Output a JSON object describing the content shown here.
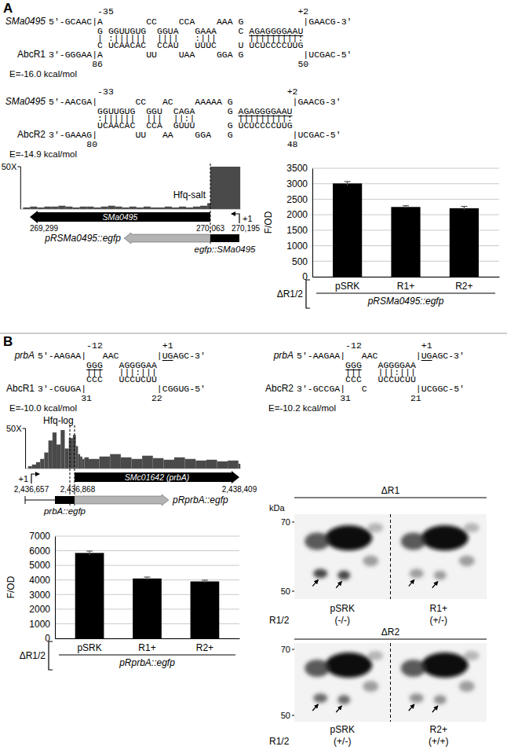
{
  "panels": [
    {
      "label": "A",
      "alignments": [
        {
          "target": "SMa0495",
          "srna": "AbcR1",
          "energy": "E=-16.0 kcal/mol",
          "rows": [
            [
              "         -35                                  +2"
            ],
            [
              "5'-GCAAC|A        CC    CCA    AAA G           |GAACG-3'"
            ],
            [
              "         G GGUUGUG  GGUA   GAAA    C ",
              {
                "text": "AGAGGGGAAU",
                "underline": true
              }
            ],
            [
              "         | :||||||  ||||   :|||      |||||||||:"
            ],
            [
              "         C UCAACAC  CCAU   UUUC    U UCUCCCCUUG"
            ],
            [
              "3'-GGGAA|A        UU    UAA    GGA G           |UCGAC-5'"
            ],
            [
              "        86                                    50"
            ]
          ]
        },
        {
          "target": "SMa0495",
          "srna": "AbcR2",
          "energy": "E=-14.9 kcal/mol",
          "rows": [
            [
              "         -33                                +2"
            ],
            [
              "5'-AACGA|       CC   AC    AAAAA G           |GAACG-3'"
            ],
            [
              "         GGUUGUG  GGU  CAGA      G ",
              {
                "text": "AGAGGGGAAU",
                "underline": true
              }
            ],
            [
              "         :||||||  |||  ||:|        |||||||||:"
            ],
            [
              "         UCAACAC  CCA  GUUU      G UCUCCCCUUG"
            ],
            [
              "3'-GAAAG|       UU   AA    GGA   G           |UCGAC-5'"
            ],
            [
              "       80                                   48"
            ]
          ]
        }
      ],
      "track": {
        "name": "Hfq-salt",
        "scale": {
          "value": 50,
          "label": "50X"
        },
        "coordinates": [
          {
            "value": 269299,
            "label": "269,299"
          },
          {
            "value": 270063,
            "label": "270,063"
          },
          {
            "value": 270195,
            "label": "270,195"
          }
        ],
        "gene": {
          "name": "SMa0495",
          "from": 270063,
          "to": 269299
        },
        "tss": {
          "label": "+1",
          "position": 270195
        },
        "markers": [
          270063
        ],
        "bins": [
          269270,
          269300,
          269330,
          269360,
          269390,
          269420,
          269450,
          269480,
          269510,
          269540,
          269570,
          269600,
          269630,
          269660,
          269690,
          269720,
          269750,
          269780,
          269810,
          269840,
          269870,
          269900,
          269930,
          269960,
          269990,
          270020,
          270050,
          270063,
          270200
        ],
        "values": [
          2,
          3,
          2,
          3,
          3,
          4,
          3,
          2,
          3,
          3,
          2,
          3,
          4,
          3,
          2,
          3,
          2,
          3,
          2,
          2,
          3,
          2,
          3,
          2,
          3,
          4,
          7,
          50
        ],
        "construct": {
          "name": "pRSMa0495::egfp",
          "fusion": "egfp::SMa0495"
        }
      }
    },
    {
      "label": "B",
      "alignments": [
        {
          "target": "prbA",
          "srna": "AbcR1",
          "energy": "E=-10.0 kcal/mol",
          "rows": [
            [
              "         -12           +1"
            ],
            [
              "5'-AAGAA|   AAC       |",
              {
                "text": "UG",
                "underline": true
              },
              "AGC-3'"
            ],
            [
              "         ",
              {
                "text": "GGG",
                "underline": true
              },
              "   AGGGGAA"
            ],
            [
              "         |||   |||:|||"
            ],
            [
              "         CCC   UCCUCUU"
            ],
            [
              "3'-CGUGA|             |CGGUG-5'"
            ],
            [
              "        31           22"
            ]
          ]
        },
        {
          "target": "prbA",
          "srna": "AbcR2",
          "energy": "E=-10.2 kcal/mol",
          "rows": [
            [
              "         -12           +1"
            ],
            [
              "5'-AAGAA|   AAC       |",
              {
                "text": "UG",
                "underline": true
              },
              "AGC-3'"
            ],
            [
              "         ",
              {
                "text": "GGG",
                "underline": true
              },
              "   AGGGGAA"
            ],
            [
              "         |||   |||:|||"
            ],
            [
              "         CCC   UCCUCUU"
            ],
            [
              "3'-GCCGA|   C         |UCGGC-5'"
            ],
            [
              "        31           21"
            ]
          ]
        }
      ],
      "track": {
        "name": "Hfq-log",
        "scale": {
          "value": 50,
          "label": "50X"
        },
        "coordinates": [
          {
            "value": 2436657,
            "label": "2,436,657"
          },
          {
            "value": 2436868,
            "label": "2,436,868"
          },
          {
            "value": 2438409,
            "label": "2,438,409"
          }
        ],
        "gene": {
          "name": "SMc01642 (prbA)",
          "from": 2436868,
          "to": 2438409
        },
        "tss": {
          "label": "+1",
          "position": 2436657
        },
        "markers": [
          2436845,
          2436868
        ],
        "bins": [
          2436640,
          2436660,
          2436680,
          2436700,
          2436720,
          2436740,
          2436760,
          2436780,
          2436800,
          2436820,
          2436840,
          2436860,
          2436880,
          2436900,
          2436920,
          2436940,
          2436960,
          2437000,
          2437100,
          2437200,
          2437300,
          2437400,
          2437500,
          2437600,
          2437700,
          2437800,
          2437900,
          2438000,
          2438100,
          2438200,
          2438300,
          2438400,
          2438420
        ],
        "values": [
          3,
          5,
          8,
          12,
          20,
          35,
          45,
          30,
          48,
          25,
          38,
          42,
          28,
          18,
          15,
          12,
          14,
          12,
          15,
          18,
          14,
          12,
          16,
          13,
          11,
          14,
          12,
          10,
          11,
          9,
          10,
          6
        ],
        "construct": {
          "name": "pRprbA::egfp",
          "fusion": "prbA::egfp"
        }
      },
      "gels": [
        {
          "title": "ΔR1",
          "unit": "kDa",
          "ticks": [
            70,
            50
          ],
          "row_label": "R1/2",
          "lanes": [
            {
              "name": "pSRK",
              "genotype": "(-/-)"
            },
            {
              "name": "R1+",
              "genotype": "(+/-)"
            }
          ]
        },
        {
          "title": "ΔR2",
          "ticks": [
            70,
            50
          ],
          "row_label": "R1/2",
          "lanes": [
            {
              "name": "pSRK",
              "genotype": "(+/-)"
            },
            {
              "name": "R2+",
              "genotype": "(+/+)"
            }
          ]
        }
      ]
    }
  ],
  "chart_data": [
    {
      "type": "bar",
      "y_label": "F/OD",
      "categories": [
        "pSRK",
        "R1+",
        "R2+"
      ],
      "values": [
        3010,
        2250,
        2210
      ],
      "errors": [
        60,
        40,
        60
      ],
      "color": "#000000",
      "ylim": [
        0,
        3500
      ],
      "yticks": [
        0,
        500,
        1000,
        1500,
        2000,
        2500,
        3000,
        3500
      ],
      "grid": true,
      "annotations": [
        "ΔR1/2",
        "pRSMa0495::egfp"
      ]
    },
    {
      "type": "bar",
      "y_label": "F/OD",
      "categories": [
        "pSRK",
        "R1+",
        "R2+"
      ],
      "values": [
        5850,
        4100,
        3900
      ],
      "errors": [
        130,
        100,
        90
      ],
      "color": "#000000",
      "ylim": [
        0,
        7000
      ],
      "yticks": [
        0,
        1000,
        2000,
        3000,
        4000,
        5000,
        6000,
        7000
      ],
      "grid": true,
      "annotations": [
        "ΔR1/2",
        "pRprbA::egfp"
      ]
    }
  ]
}
